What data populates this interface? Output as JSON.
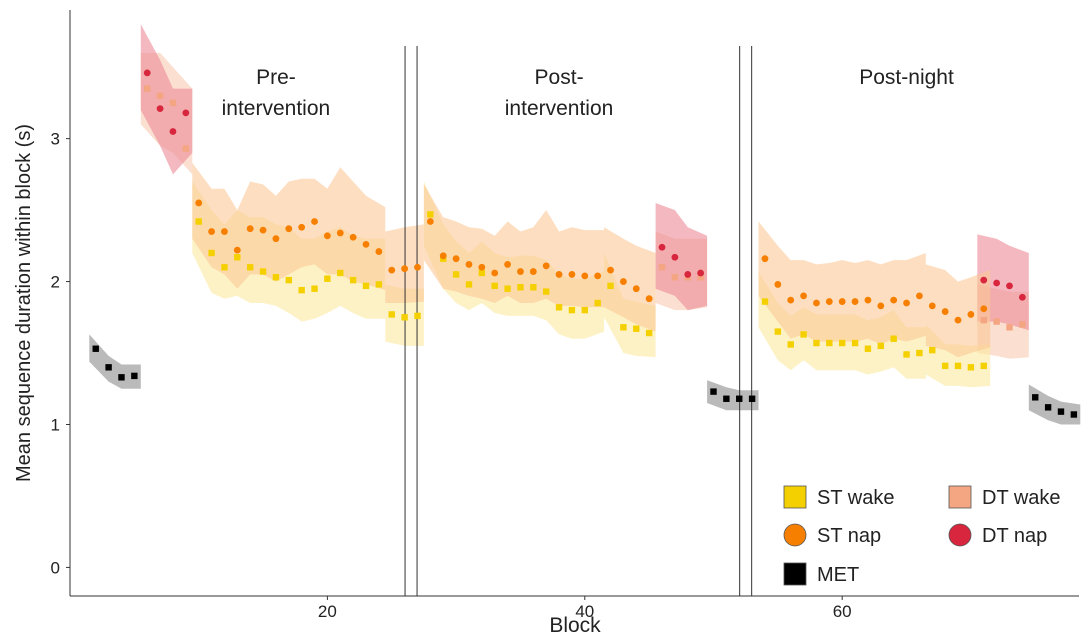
{
  "chart_data": {
    "type": "scatter",
    "title": "",
    "xlabel": "Block",
    "ylabel": "Mean sequence duration within block (s)",
    "xlim": [
      0,
      78.4
    ],
    "ylim": [
      -0.2,
      3.9
    ],
    "x_ticks": [
      20,
      40,
      60
    ],
    "y_ticks": [
      0,
      1,
      2,
      3
    ],
    "grid": false,
    "legend_position": "bottom-right",
    "sessions": [
      {
        "label_line1": "Pre-",
        "label_line2": "intervention",
        "center_x": 16,
        "divider_after": 26.5
      },
      {
        "label_line1": "Post-",
        "label_line2": "intervention",
        "center_x": 38,
        "divider_after": 52.5
      },
      {
        "label_line1": "Post-night",
        "label_line2": "",
        "center_x": 65,
        "divider_after": null
      }
    ],
    "legend": [
      {
        "label": "ST wake",
        "series": "st_wake"
      },
      {
        "label": "DT wake",
        "series": "dt_wake"
      },
      {
        "label": "ST nap",
        "series": "st_nap"
      },
      {
        "label": "DT nap",
        "series": "dt_nap"
      },
      {
        "label": "MET",
        "series": "met"
      }
    ],
    "series": [
      {
        "key": "met",
        "marker": "square",
        "color": "#000000",
        "band_color": "#8c8c8c",
        "segments": [
          {
            "x": [
              2,
              3,
              4,
              5
            ],
            "y": [
              1.53,
              1.4,
              1.33,
              1.34
            ],
            "lo": [
              1.44,
              1.3,
              1.25,
              1.25
            ],
            "hi": [
              1.63,
              1.48,
              1.42,
              1.42
            ]
          },
          {
            "x": [
              50,
              51,
              52,
              53
            ],
            "y": [
              1.23,
              1.18,
              1.18,
              1.18
            ],
            "lo": [
              1.15,
              1.1,
              1.1,
              1.1
            ],
            "hi": [
              1.31,
              1.26,
              1.24,
              1.24
            ]
          },
          {
            "x": [
              75,
              76,
              77,
              78
            ],
            "y": [
              1.19,
              1.12,
              1.09,
              1.07
            ],
            "lo": [
              1.1,
              1.03,
              1.0,
              1.0
            ],
            "hi": [
              1.28,
              1.2,
              1.16,
              1.14
            ]
          }
        ]
      },
      {
        "key": "dt_wake",
        "marker": "square",
        "color": "#f4a582",
        "band_color": "#f9c9b0",
        "segments": [
          {
            "x": [
              6,
              7,
              8,
              9
            ],
            "y": [
              3.35,
              3.3,
              3.25,
              2.93
            ],
            "lo": [
              3.1,
              2.95,
              2.9,
              2.75
            ],
            "hi": [
              3.6,
              3.6,
              3.5,
              3.35
            ]
          },
          {
            "x": [
              46,
              47,
              48,
              49
            ],
            "y": [
              2.1,
              2.03,
              2.03,
              2.03
            ],
            "lo": [
              1.85,
              1.8,
              1.8,
              1.82
            ],
            "hi": [
              2.35,
              2.3,
              2.3,
              2.3
            ]
          },
          {
            "x": [
              71,
              72,
              73,
              74
            ],
            "y": [
              1.73,
              1.72,
              1.68,
              1.7
            ],
            "lo": [
              1.5,
              1.48,
              1.46,
              1.47
            ],
            "hi": [
              1.98,
              1.95,
              1.93,
              1.93
            ]
          }
        ]
      },
      {
        "key": "dt_nap",
        "marker": "circle",
        "color": "#d7263d",
        "band_color": "#ec8a96",
        "segments": [
          {
            "x": [
              6,
              7,
              8,
              9
            ],
            "y": [
              3.46,
              3.21,
              3.05,
              3.18
            ],
            "lo": [
              3.2,
              2.95,
              2.75,
              2.9
            ],
            "hi": [
              3.8,
              3.55,
              3.35,
              3.35
            ]
          },
          {
            "x": [
              46,
              47,
              48,
              49
            ],
            "y": [
              2.24,
              2.17,
              2.05,
              2.06
            ],
            "lo": [
              1.95,
              1.9,
              1.8,
              1.83
            ],
            "hi": [
              2.55,
              2.5,
              2.38,
              2.32
            ]
          },
          {
            "x": [
              71,
              72,
              73,
              74
            ],
            "y": [
              2.01,
              1.99,
              1.97,
              1.89
            ],
            "lo": [
              1.72,
              1.72,
              1.7,
              1.66
            ],
            "hi": [
              2.33,
              2.3,
              2.25,
              2.2
            ]
          }
        ]
      },
      {
        "key": "st_wake",
        "marker": "square",
        "color": "#f5d000",
        "band_color": "#fbe9a0",
        "segments": [
          {
            "x": [
              10,
              11,
              12,
              13,
              14,
              15,
              16,
              17,
              18,
              19,
              20,
              21,
              22,
              23,
              24
            ],
            "y": [
              2.42,
              2.2,
              2.1,
              2.17,
              2.1,
              2.07,
              2.03,
              2.01,
              1.94,
              1.95,
              2.02,
              2.06,
              2.01,
              1.97,
              1.98
            ],
            "lo": [
              2.2,
              1.92,
              1.88,
              1.9,
              1.85,
              1.85,
              1.83,
              1.78,
              1.72,
              1.74,
              1.78,
              1.83,
              1.78,
              1.74,
              1.74
            ],
            "hi": [
              2.7,
              2.5,
              2.4,
              2.5,
              2.45,
              2.45,
              2.4,
              2.38,
              2.3,
              2.3,
              2.35,
              2.38,
              2.32,
              2.3,
              2.3
            ]
          },
          {
            "x": [
              25,
              26,
              27
            ],
            "y": [
              1.77,
              1.75,
              1.76
            ],
            "lo": [
              1.58,
              1.55,
              1.55
            ],
            "hi": [
              1.98,
              1.95,
              1.95
            ]
          },
          {
            "x": [
              28,
              29,
              30,
              31,
              32,
              33,
              34,
              35,
              36,
              37,
              38,
              39,
              40,
              41
            ],
            "y": [
              2.47,
              2.16,
              2.05,
              1.98,
              2.06,
              1.97,
              1.95,
              1.96,
              1.96,
              1.93,
              1.82,
              1.8,
              1.8,
              1.85
            ],
            "lo": [
              2.25,
              1.95,
              1.85,
              1.8,
              1.85,
              1.78,
              1.76,
              1.76,
              1.76,
              1.73,
              1.63,
              1.6,
              1.6,
              1.65
            ],
            "hi": [
              2.7,
              2.4,
              2.28,
              2.2,
              2.28,
              2.2,
              2.17,
              2.18,
              2.18,
              2.15,
              2.05,
              2.02,
              2.02,
              2.07
            ]
          },
          {
            "x": [
              42,
              43,
              44,
              45
            ],
            "y": [
              1.97,
              1.68,
              1.67,
              1.64
            ],
            "lo": [
              1.75,
              1.5,
              1.48,
              1.47
            ],
            "hi": [
              2.2,
              1.88,
              1.86,
              1.83
            ]
          },
          {
            "x": [
              54,
              55,
              56,
              57,
              58,
              59,
              60,
              61,
              62,
              63,
              64,
              65,
              66
            ],
            "y": [
              1.86,
              1.65,
              1.56,
              1.63,
              1.57,
              1.57,
              1.57,
              1.57,
              1.53,
              1.55,
              1.6,
              1.49,
              1.5
            ],
            "lo": [
              1.68,
              1.45,
              1.38,
              1.45,
              1.38,
              1.38,
              1.38,
              1.38,
              1.35,
              1.37,
              1.4,
              1.32,
              1.32
            ],
            "hi": [
              2.07,
              1.85,
              1.76,
              1.82,
              1.77,
              1.77,
              1.77,
              1.77,
              1.73,
              1.75,
              1.8,
              1.68,
              1.68
            ]
          },
          {
            "x": [
              67,
              68,
              69,
              70,
              71
            ],
            "y": [
              1.52,
              1.41,
              1.41,
              1.4,
              1.41
            ],
            "lo": [
              1.35,
              1.27,
              1.27,
              1.26,
              1.27
            ],
            "hi": [
              1.7,
              1.56,
              1.56,
              1.55,
              1.56
            ]
          }
        ]
      },
      {
        "key": "st_nap",
        "marker": "circle",
        "color": "#f77f00",
        "band_color": "#fbc896",
        "segments": [
          {
            "x": [
              10,
              11,
              12,
              13,
              14,
              15,
              16,
              17,
              18,
              19,
              20,
              21,
              22,
              23,
              24
            ],
            "y": [
              2.55,
              2.35,
              2.35,
              2.22,
              2.37,
              2.36,
              2.3,
              2.37,
              2.38,
              2.42,
              2.32,
              2.34,
              2.31,
              2.26,
              2.21
            ],
            "lo": [
              2.3,
              2.1,
              2.05,
              1.95,
              2.05,
              2.05,
              2.0,
              2.05,
              2.1,
              2.12,
              2.05,
              2.05,
              2.0,
              1.98,
              1.94
            ],
            "hi": [
              2.83,
              2.65,
              2.65,
              2.5,
              2.7,
              2.68,
              2.6,
              2.7,
              2.72,
              2.72,
              2.65,
              2.8,
              2.7,
              2.6,
              2.52
            ]
          },
          {
            "x": [
              25,
              26,
              27
            ],
            "y": [
              2.08,
              2.09,
              2.1
            ],
            "lo": [
              1.85,
              1.85,
              1.86
            ],
            "hi": [
              2.35,
              2.38,
              2.4
            ]
          },
          {
            "x": [
              28,
              29,
              30,
              31,
              32,
              33,
              34,
              35,
              36,
              37,
              38,
              39,
              40,
              41
            ],
            "y": [
              2.42,
              2.18,
              2.16,
              2.12,
              2.1,
              2.06,
              2.12,
              2.07,
              2.07,
              2.11,
              2.05,
              2.05,
              2.04,
              2.04
            ],
            "lo": [
              2.15,
              1.95,
              1.93,
              1.9,
              1.88,
              1.85,
              1.9,
              1.85,
              1.85,
              1.88,
              1.83,
              1.83,
              1.82,
              1.82
            ],
            "hi": [
              2.68,
              2.45,
              2.42,
              2.38,
              2.37,
              2.32,
              2.42,
              2.35,
              2.38,
              2.5,
              2.35,
              2.38,
              2.36,
              2.36
            ]
          },
          {
            "x": [
              42,
              43,
              44,
              45
            ],
            "y": [
              2.08,
              2.0,
              1.95,
              1.88
            ],
            "lo": [
              1.82,
              1.75,
              1.7,
              1.65
            ],
            "hi": [
              2.38,
              2.3,
              2.25,
              2.2
            ]
          },
          {
            "x": [
              54,
              55,
              56,
              57,
              58,
              59,
              60,
              61,
              62,
              63,
              64,
              65,
              66
            ],
            "y": [
              2.16,
              1.98,
              1.87,
              1.9,
              1.85,
              1.86,
              1.86,
              1.86,
              1.87,
              1.83,
              1.87,
              1.85,
              1.9
            ],
            "lo": [
              1.9,
              1.72,
              1.6,
              1.63,
              1.58,
              1.58,
              1.58,
              1.58,
              1.6,
              1.56,
              1.6,
              1.58,
              1.62
            ],
            "hi": [
              2.42,
              2.25,
              2.15,
              2.15,
              2.12,
              2.13,
              2.15,
              2.13,
              2.15,
              2.12,
              2.15,
              2.15,
              2.2
            ]
          },
          {
            "x": [
              67,
              68,
              69,
              70,
              71
            ],
            "y": [
              1.83,
              1.79,
              1.73,
              1.77,
              1.81
            ],
            "lo": [
              1.55,
              1.52,
              1.47,
              1.5,
              1.54
            ],
            "hi": [
              2.12,
              2.08,
              2.0,
              2.03,
              2.08
            ]
          }
        ]
      }
    ]
  }
}
